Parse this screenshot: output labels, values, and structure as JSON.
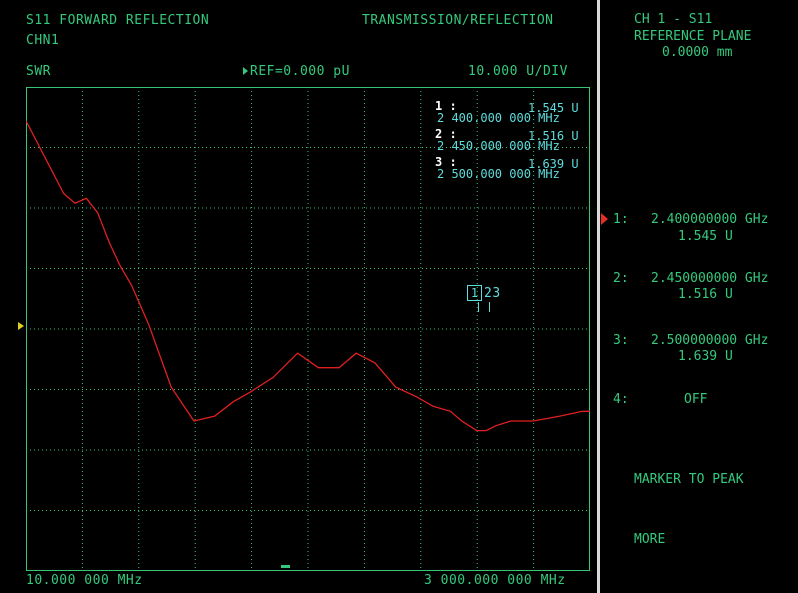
{
  "header": {
    "measurement": "S11 FORWARD REFLECTION",
    "mode": "TRANSMISSION/REFLECTION",
    "channel": "CHN1",
    "format": "SWR",
    "reference": "REF=0.000 pU",
    "scale": "10.000 U/DIV"
  },
  "markers": [
    {
      "index": "1 :",
      "value": "1.545 U",
      "freq": "2 400.000 000 MHz"
    },
    {
      "index": "2 :",
      "value": "1.516 U",
      "freq": "2 450.000 000 MHz"
    },
    {
      "index": "3 :",
      "value": "1.639 U",
      "freq": "2 500.000 000 MHz"
    }
  ],
  "plot": {
    "start_freq": "10.000 000 MHz",
    "stop_freq": "3 000.000 000 MHz",
    "marker_tag": "1",
    "marker_tag_rest": "23"
  },
  "softkeys": {
    "title_line1": "CH 1 - S11",
    "title_line2": "REFERENCE PLANE",
    "title_line3": "0.0000 mm",
    "items": [
      {
        "num": "1:",
        "freq": "2.400000000 GHz",
        "value": "1.545 U"
      },
      {
        "num": "2:",
        "freq": "2.450000000 GHz",
        "value": "1.516 U"
      },
      {
        "num": "3:",
        "freq": "2.500000000 GHz",
        "value": "1.639 U"
      },
      {
        "num": "4:",
        "freq": "OFF"
      }
    ],
    "marker_to_peak": "MARKER TO PEAK",
    "more": "MORE"
  },
  "colors": {
    "trace": "#e02020",
    "grid": "#39c46f",
    "text_green": "#35c97d",
    "text_cyan": "#5fdcdc",
    "active_arrow": "#e0302a",
    "ref_arrow": "#e0d020"
  },
  "chart_data": {
    "type": "line",
    "title": "S11 FORWARD REFLECTION",
    "xlabel": "",
    "ylabel": "SWR",
    "x_range_mhz": [
      10,
      3000
    ],
    "grid": true,
    "series": [
      {
        "x": [
          10,
          210,
          270,
          330,
          390,
          450,
          510,
          570,
          660,
          780,
          900,
          1010,
          1110,
          1200,
          1320,
          1450,
          1560,
          1670,
          1760,
          1860,
          1970,
          2080,
          2170,
          2260,
          2320,
          2400,
          2450,
          2500,
          2580,
          2700,
          2840,
          2960,
          3000
        ],
        "y": [
          0.93,
          0.78,
          0.76,
          0.77,
          0.74,
          0.68,
          0.63,
          0.59,
          0.51,
          0.38,
          0.31,
          0.32,
          0.35,
          0.37,
          0.4,
          0.45,
          0.42,
          0.42,
          0.45,
          0.43,
          0.38,
          0.36,
          0.34,
          0.33,
          0.31,
          0.29,
          0.29,
          0.3,
          0.31,
          0.31,
          0.32,
          0.33,
          0.33
        ]
      }
    ]
  }
}
